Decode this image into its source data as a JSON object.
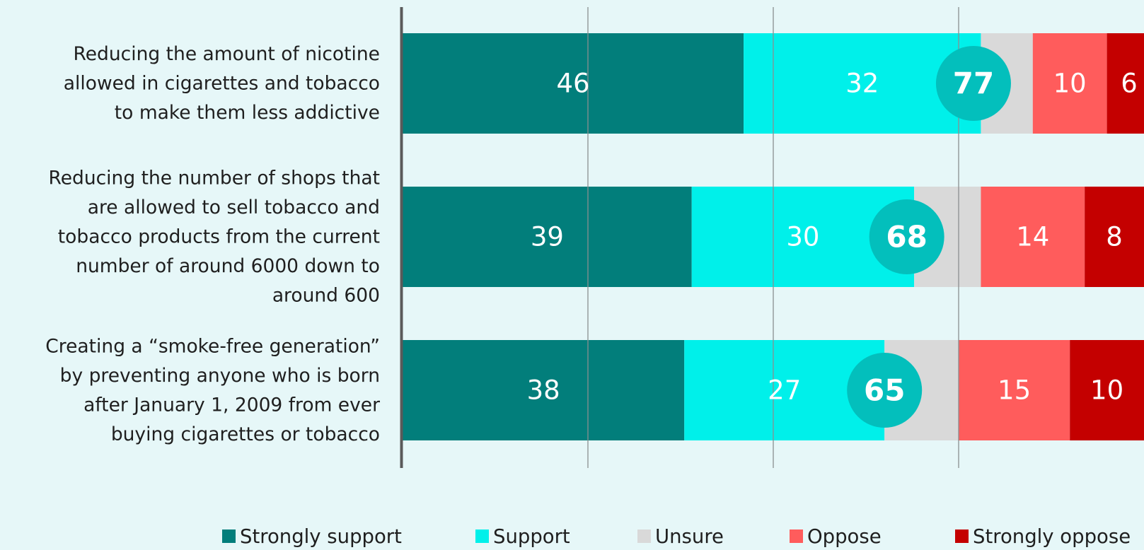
{
  "chart_data": {
    "type": "bar",
    "orientation": "horizontal",
    "stacked": true,
    "title": "",
    "xlabel": "",
    "ylabel": "",
    "xlim": [
      0,
      100
    ],
    "grid": true,
    "legend_position": "bottom",
    "categories": [
      [
        "Reducing the amount of nicotine",
        "allowed in cigarettes and tobacco",
        "to make them less addictive"
      ],
      [
        "Reducing the number of shops that",
        "are allowed to sell tobacco and",
        "tobacco products from the current",
        "number of around 6000 down to",
        "around 600"
      ],
      [
        "Creating a “smoke-free generation”",
        "by preventing anyone who is born",
        "after January 1, 2009 from ever",
        "buying cigarettes or tobacco"
      ]
    ],
    "series": [
      {
        "name": "Strongly support",
        "color": "#027e7b",
        "values": [
          46,
          39,
          38
        ],
        "labels": [
          "46",
          "39",
          "38"
        ]
      },
      {
        "name": "Support",
        "color": "#00f0ea",
        "values": [
          32,
          30,
          27
        ],
        "labels": [
          "32",
          "30",
          "27"
        ]
      },
      {
        "name": "Unsure",
        "color": "#d9d9d9",
        "values": [
          7,
          9,
          10
        ],
        "labels": [
          "",
          "",
          ""
        ]
      },
      {
        "name": "Oppose",
        "color": "#ff5c5c",
        "values": [
          10,
          14,
          15
        ],
        "labels": [
          "10",
          "14",
          "15"
        ]
      },
      {
        "name": "Strongly oppose",
        "color": "#c40000",
        "values": [
          6,
          8,
          10
        ],
        "labels": [
          "6",
          "8",
          "10"
        ]
      }
    ],
    "totals": {
      "values": [
        77,
        68,
        65
      ],
      "labels": [
        "77",
        "68",
        "65"
      ],
      "color": "#03bfbc"
    }
  }
}
